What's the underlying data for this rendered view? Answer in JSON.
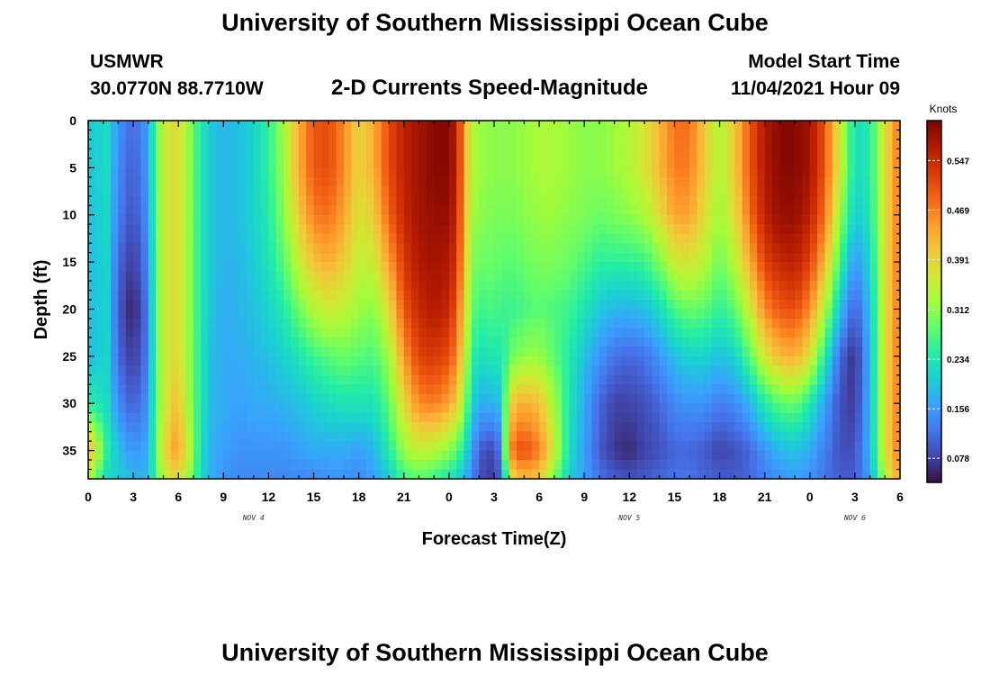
{
  "header": {
    "title": "University of Southern Mississippi Ocean Cube",
    "station": "USMWR",
    "coords": "30.0770N  88.7710W",
    "plot_title": "2-D Currents Speed-Magnitude",
    "model_start_label": "Model Start Time",
    "model_start_value": "11/04/2021 Hour 09"
  },
  "footer": {
    "title": "University of Southern Mississippi Ocean Cube"
  },
  "chart_data": {
    "type": "heatmap",
    "title": "2-D Currents Speed-Magnitude",
    "xlabel": "Forecast Time(Z)",
    "ylabel": "Depth (ft)",
    "x_tick_labels": [
      "0",
      "3",
      "6",
      "9",
      "12",
      "15",
      "18",
      "21",
      "0",
      "3",
      "6",
      "9",
      "12",
      "15",
      "18",
      "21",
      "0",
      "3",
      "6"
    ],
    "x_range_hours": [
      0,
      54
    ],
    "date_labels": [
      {
        "text": "NOV 4",
        "hour": 11
      },
      {
        "text": "NOV 5",
        "hour": 36
      },
      {
        "text": "NOV 6",
        "hour": 51
      }
    ],
    "y_tick_labels": [
      "0",
      "5",
      "10",
      "15",
      "20",
      "25",
      "30",
      "35"
    ],
    "ylim": [
      0,
      38
    ],
    "colorbar": {
      "label": "Knots",
      "ticks": [
        "0.547",
        "0.469",
        "0.391",
        "0.312",
        "0.234",
        "0.156",
        "0.078"
      ],
      "range": [
        0.04,
        0.61
      ]
    },
    "colormap": [
      "#30123b",
      "#4145ab",
      "#4675ed",
      "#39a2fc",
      "#1bcfd4",
      "#24eca6",
      "#61fc6c",
      "#a4fc3b",
      "#d1e834",
      "#f3c63a",
      "#fe9b2d",
      "#f36315",
      "#d93806",
      "#b11901",
      "#7a0403"
    ],
    "profiles": {
      "hours": [
        0,
        0.5,
        1,
        2,
        3,
        4,
        4.5,
        5,
        5.5,
        6,
        6.5,
        7,
        7.5,
        8,
        9,
        10,
        11,
        12,
        13,
        14,
        15,
        16,
        17,
        18,
        19,
        20,
        21,
        22,
        23,
        24,
        24.5,
        25,
        25.5,
        26,
        27,
        27.5,
        28,
        28.5,
        29,
        30,
        31,
        32,
        33,
        34,
        35,
        36,
        37,
        38,
        39,
        40,
        41,
        42,
        43,
        44,
        45,
        46,
        47,
        48,
        49,
        50,
        51,
        52,
        53,
        54
      ],
      "depths": [
        0,
        5,
        10,
        15,
        20,
        25,
        30,
        35,
        38
      ],
      "speeds": [
        [
          0.22,
          0.22,
          0.22,
          0.22,
          0.22,
          0.22,
          0.26,
          0.42,
          0.33
        ],
        [
          0.18,
          0.18,
          0.17,
          0.16,
          0.16,
          0.16,
          0.22,
          0.38,
          0.3
        ],
        [
          0.24,
          0.24,
          0.24,
          0.24,
          0.24,
          0.24,
          0.24,
          0.27,
          0.22
        ],
        [
          0.15,
          0.14,
          0.13,
          0.11,
          0.1,
          0.11,
          0.14,
          0.19,
          0.2
        ],
        [
          0.11,
          0.1,
          0.09,
          0.07,
          0.05,
          0.07,
          0.1,
          0.15,
          0.18
        ],
        [
          0.16,
          0.16,
          0.15,
          0.14,
          0.13,
          0.13,
          0.15,
          0.17,
          0.18
        ],
        [
          0.29,
          0.29,
          0.29,
          0.29,
          0.29,
          0.29,
          0.29,
          0.29,
          0.28
        ],
        [
          0.34,
          0.34,
          0.34,
          0.34,
          0.34,
          0.34,
          0.34,
          0.37,
          0.34
        ],
        [
          0.38,
          0.38,
          0.38,
          0.38,
          0.38,
          0.38,
          0.4,
          0.43,
          0.38
        ],
        [
          0.38,
          0.38,
          0.38,
          0.38,
          0.38,
          0.38,
          0.41,
          0.44,
          0.38
        ],
        [
          0.34,
          0.34,
          0.34,
          0.34,
          0.34,
          0.34,
          0.35,
          0.38,
          0.34
        ],
        [
          0.28,
          0.28,
          0.28,
          0.28,
          0.28,
          0.28,
          0.28,
          0.29,
          0.27
        ],
        [
          0.24,
          0.24,
          0.24,
          0.24,
          0.24,
          0.24,
          0.24,
          0.23,
          0.22
        ],
        [
          0.2,
          0.2,
          0.2,
          0.2,
          0.2,
          0.19,
          0.19,
          0.18,
          0.18
        ],
        [
          0.18,
          0.18,
          0.18,
          0.18,
          0.17,
          0.17,
          0.17,
          0.16,
          0.15
        ],
        [
          0.19,
          0.19,
          0.19,
          0.18,
          0.18,
          0.17,
          0.16,
          0.15,
          0.14
        ],
        [
          0.21,
          0.21,
          0.21,
          0.2,
          0.19,
          0.18,
          0.17,
          0.15,
          0.14
        ],
        [
          0.25,
          0.25,
          0.24,
          0.23,
          0.21,
          0.19,
          0.17,
          0.15,
          0.14
        ],
        [
          0.33,
          0.32,
          0.31,
          0.28,
          0.24,
          0.21,
          0.18,
          0.15,
          0.14
        ],
        [
          0.43,
          0.43,
          0.4,
          0.35,
          0.29,
          0.23,
          0.19,
          0.16,
          0.14
        ],
        [
          0.5,
          0.5,
          0.47,
          0.41,
          0.34,
          0.26,
          0.21,
          0.17,
          0.14
        ],
        [
          0.51,
          0.51,
          0.48,
          0.43,
          0.36,
          0.28,
          0.22,
          0.17,
          0.15
        ],
        [
          0.46,
          0.46,
          0.44,
          0.4,
          0.35,
          0.29,
          0.23,
          0.17,
          0.15
        ],
        [
          0.39,
          0.39,
          0.37,
          0.35,
          0.32,
          0.28,
          0.23,
          0.16,
          0.14
        ],
        [
          0.43,
          0.43,
          0.4,
          0.36,
          0.31,
          0.27,
          0.23,
          0.18,
          0.16
        ],
        [
          0.51,
          0.51,
          0.49,
          0.44,
          0.38,
          0.32,
          0.28,
          0.24,
          0.2
        ],
        [
          0.56,
          0.56,
          0.55,
          0.53,
          0.5,
          0.45,
          0.39,
          0.32,
          0.26
        ],
        [
          0.58,
          0.58,
          0.58,
          0.57,
          0.55,
          0.52,
          0.46,
          0.35,
          0.28
        ],
        [
          0.6,
          0.6,
          0.59,
          0.58,
          0.57,
          0.53,
          0.47,
          0.34,
          0.26
        ],
        [
          0.6,
          0.6,
          0.59,
          0.57,
          0.55,
          0.51,
          0.44,
          0.31,
          0.23
        ],
        [
          0.56,
          0.56,
          0.55,
          0.53,
          0.5,
          0.46,
          0.4,
          0.28,
          0.21
        ],
        [
          0.45,
          0.45,
          0.44,
          0.43,
          0.4,
          0.37,
          0.32,
          0.23,
          0.18
        ],
        [
          0.34,
          0.34,
          0.33,
          0.31,
          0.29,
          0.26,
          0.22,
          0.17,
          0.14
        ],
        [
          0.32,
          0.32,
          0.31,
          0.29,
          0.26,
          0.22,
          0.17,
          0.1,
          0.09
        ],
        [
          0.31,
          0.31,
          0.3,
          0.29,
          0.27,
          0.24,
          0.18,
          0.08,
          0.07
        ],
        [
          0.31,
          0.31,
          0.3,
          0.28,
          0.26,
          0.23,
          0.19,
          0.14,
          0.12
        ],
        [
          0.31,
          0.31,
          0.3,
          0.28,
          0.26,
          0.28,
          0.38,
          0.45,
          0.35
        ],
        [
          0.31,
          0.31,
          0.3,
          0.28,
          0.26,
          0.3,
          0.42,
          0.5,
          0.4
        ],
        [
          0.32,
          0.32,
          0.31,
          0.29,
          0.27,
          0.31,
          0.43,
          0.51,
          0.42
        ],
        [
          0.33,
          0.33,
          0.32,
          0.3,
          0.28,
          0.32,
          0.41,
          0.47,
          0.4
        ],
        [
          0.33,
          0.33,
          0.32,
          0.3,
          0.27,
          0.28,
          0.33,
          0.36,
          0.3
        ],
        [
          0.32,
          0.32,
          0.31,
          0.29,
          0.26,
          0.24,
          0.23,
          0.22,
          0.2
        ],
        [
          0.31,
          0.31,
          0.3,
          0.27,
          0.23,
          0.19,
          0.17,
          0.16,
          0.16
        ],
        [
          0.31,
          0.31,
          0.29,
          0.25,
          0.2,
          0.15,
          0.11,
          0.1,
          0.12
        ],
        [
          0.32,
          0.32,
          0.3,
          0.25,
          0.18,
          0.12,
          0.08,
          0.07,
          0.1
        ],
        [
          0.34,
          0.34,
          0.31,
          0.25,
          0.18,
          0.11,
          0.08,
          0.06,
          0.09
        ],
        [
          0.37,
          0.37,
          0.33,
          0.26,
          0.19,
          0.12,
          0.09,
          0.08,
          0.1
        ],
        [
          0.42,
          0.42,
          0.38,
          0.3,
          0.22,
          0.15,
          0.11,
          0.09,
          0.11
        ],
        [
          0.48,
          0.47,
          0.44,
          0.36,
          0.27,
          0.19,
          0.14,
          0.11,
          0.12
        ],
        [
          0.48,
          0.47,
          0.44,
          0.37,
          0.29,
          0.21,
          0.15,
          0.11,
          0.12
        ],
        [
          0.4,
          0.4,
          0.38,
          0.34,
          0.28,
          0.21,
          0.15,
          0.1,
          0.11
        ],
        [
          0.33,
          0.33,
          0.32,
          0.29,
          0.25,
          0.19,
          0.13,
          0.08,
          0.1
        ],
        [
          0.4,
          0.4,
          0.38,
          0.34,
          0.28,
          0.21,
          0.14,
          0.09,
          0.1
        ],
        [
          0.5,
          0.5,
          0.48,
          0.43,
          0.36,
          0.28,
          0.18,
          0.11,
          0.11
        ],
        [
          0.57,
          0.57,
          0.56,
          0.52,
          0.46,
          0.37,
          0.24,
          0.15,
          0.13
        ],
        [
          0.6,
          0.6,
          0.59,
          0.55,
          0.5,
          0.42,
          0.28,
          0.18,
          0.15
        ],
        [
          0.6,
          0.6,
          0.59,
          0.56,
          0.51,
          0.43,
          0.29,
          0.19,
          0.16
        ],
        [
          0.58,
          0.58,
          0.56,
          0.52,
          0.46,
          0.38,
          0.24,
          0.17,
          0.15
        ],
        [
          0.5,
          0.5,
          0.48,
          0.42,
          0.34,
          0.24,
          0.16,
          0.13,
          0.12
        ],
        [
          0.36,
          0.36,
          0.32,
          0.26,
          0.19,
          0.11,
          0.09,
          0.09,
          0.1
        ],
        [
          0.22,
          0.22,
          0.2,
          0.15,
          0.1,
          0.06,
          0.07,
          0.09,
          0.1
        ],
        [
          0.24,
          0.24,
          0.23,
          0.21,
          0.19,
          0.18,
          0.18,
          0.18,
          0.16
        ],
        [
          0.38,
          0.38,
          0.38,
          0.38,
          0.38,
          0.38,
          0.38,
          0.38,
          0.34
        ],
        [
          0.48,
          0.48,
          0.48,
          0.48,
          0.48,
          0.48,
          0.48,
          0.48,
          0.44
        ]
      ]
    }
  }
}
